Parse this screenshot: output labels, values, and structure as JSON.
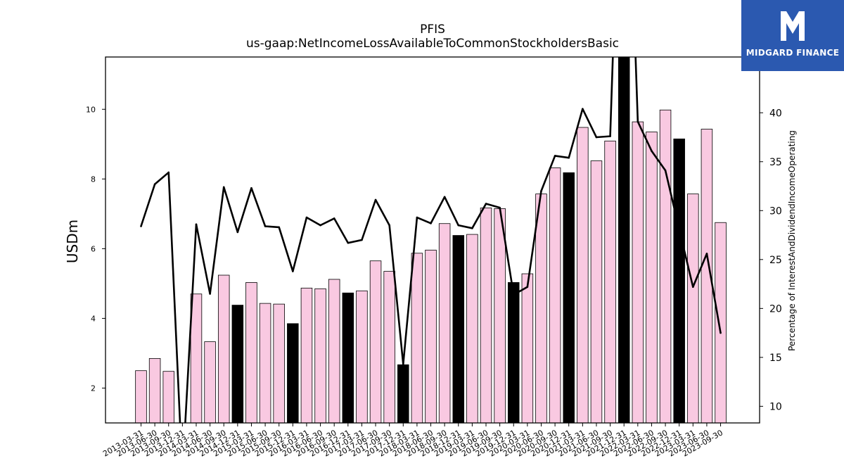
{
  "header": {
    "title": "PFIS",
    "subtitle": "us-gaap:NetIncomeLossAvailableToCommonStockholdersBasic"
  },
  "logo": {
    "text": "MIDGARD FINANCE",
    "icon": "mf-logo-icon",
    "color": "#2b59b0"
  },
  "chart_data": {
    "type": "bar",
    "ylabel": "USDm",
    "y2label": "Percentage of InterestAndDividendIncomeOperating",
    "ylim": [
      1,
      11.5
    ],
    "y2lim": [
      8.3,
      45.7
    ],
    "yticks": [
      2,
      4,
      6,
      8,
      10
    ],
    "y2ticks": [
      10,
      15,
      20,
      25,
      30,
      35,
      40
    ],
    "categories": [
      "2013-03-31",
      "2013-06-30",
      "2013-09-30",
      "2013-12-31",
      "2014-03-31",
      "2014-06-30",
      "2014-09-30",
      "2014-12-31",
      "2015-03-31",
      "2015-06-30",
      "2015-09-30",
      "2015-12-31",
      "2016-03-31",
      "2016-06-30",
      "2016-09-30",
      "2016-12-31",
      "2017-03-31",
      "2017-06-30",
      "2017-09-30",
      "2017-12-31",
      "2018-03-31",
      "2018-06-30",
      "2018-09-30",
      "2018-12-31",
      "2019-03-31",
      "2019-06-30",
      "2019-09-30",
      "2019-12-31",
      "2020-03-31",
      "2020-06-30",
      "2020-09-30",
      "2020-12-31",
      "2021-03-31",
      "2021-06-30",
      "2021-09-30",
      "2021-12-31",
      "2022-03-31",
      "2022-06-30",
      "2022-09-30",
      "2022-12-31",
      "2023-03-31",
      "2023-06-30",
      "2023-09-30"
    ],
    "series": [
      {
        "axis": "left",
        "values": [
          2.5,
          2.85,
          2.48,
          0.9,
          4.7,
          3.33,
          5.24,
          4.38,
          5.03,
          4.43,
          4.41,
          3.85,
          4.87,
          4.85,
          5.12,
          4.73,
          4.79,
          5.65,
          5.35,
          2.67,
          5.87,
          5.96,
          6.72,
          6.38,
          6.41,
          7.17,
          7.15,
          5.03,
          5.28,
          7.57,
          8.32,
          8.18,
          9.48,
          8.52,
          9.09,
          11.6,
          9.64,
          9.35,
          9.98,
          9.15,
          7.57,
          9.43,
          6.75
        ],
        "highlight": [
          false,
          false,
          false,
          false,
          false,
          false,
          false,
          true,
          false,
          false,
          false,
          true,
          false,
          false,
          false,
          true,
          false,
          false,
          false,
          true,
          false,
          false,
          false,
          true,
          false,
          false,
          false,
          true,
          false,
          false,
          false,
          true,
          false,
          false,
          false,
          true,
          false,
          false,
          false,
          true,
          false,
          false,
          false
        ],
        "color": "#f9c9e1",
        "highlight_color": "#000000"
      },
      {
        "axis": "right",
        "type": "line",
        "values": [
          28.4,
          32.7,
          33.9,
          3.0,
          28.6,
          21.5,
          32.4,
          27.8,
          32.3,
          28.4,
          28.3,
          23.8,
          29.3,
          28.5,
          29.2,
          26.7,
          27.0,
          31.1,
          28.5,
          14.3,
          29.3,
          28.7,
          31.4,
          28.5,
          28.2,
          30.7,
          30.3,
          21.4,
          22.2,
          32.0,
          35.6,
          35.4,
          40.4,
          37.5,
          37.6,
          80.0,
          39.1,
          36.1,
          34.1,
          28.1,
          22.2,
          25.6,
          17.5
        ],
        "color": "#000000"
      }
    ]
  }
}
